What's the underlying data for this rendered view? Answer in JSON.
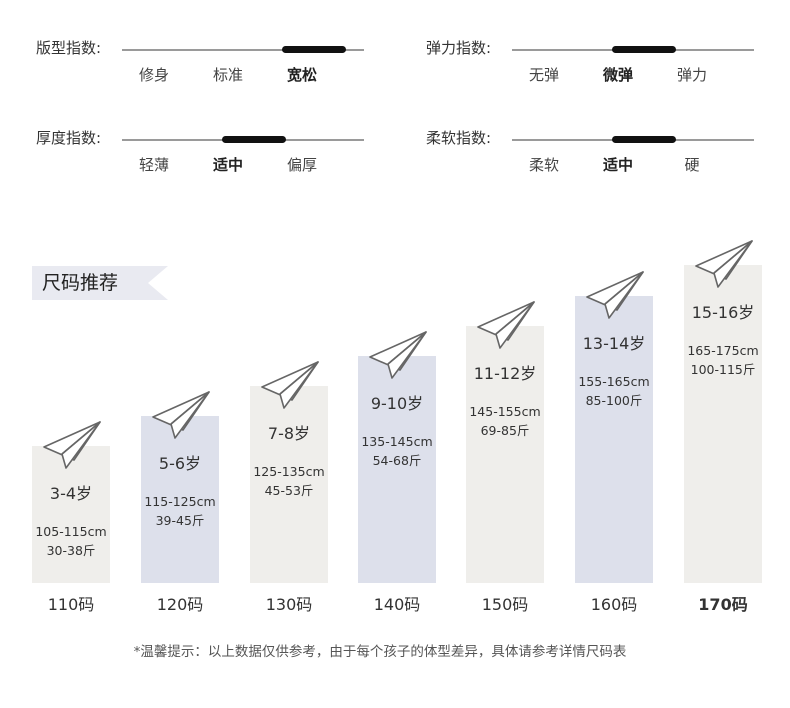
{
  "indices": [
    {
      "label": "版型指数:",
      "options": [
        "修身",
        "标准",
        "宽松"
      ],
      "active": 2
    },
    {
      "label": "弹力指数:",
      "options": [
        "无弹",
        "微弹",
        "弹力"
      ],
      "active": 1
    },
    {
      "label": "厚度指数:",
      "options": [
        "轻薄",
        "适中",
        "偏厚"
      ],
      "active": 1
    },
    {
      "label": "柔软指数:",
      "options": [
        "柔软",
        "适中",
        "硬"
      ],
      "active": 1
    }
  ],
  "banner_title": "尺码推荐",
  "sizes": [
    {
      "age": "3-4岁",
      "height": "105-115cm",
      "weight": "30-38斤",
      "size": "110码",
      "color": "#efeeeb"
    },
    {
      "age": "5-6岁",
      "height": "115-125cm",
      "weight": "39-45斤",
      "size": "120码",
      "color": "#dde0eb"
    },
    {
      "age": "7-8岁",
      "height": "125-135cm",
      "weight": "45-53斤",
      "size": "130码",
      "color": "#efeeeb"
    },
    {
      "age": "9-10岁",
      "height": "135-145cm",
      "weight": "54-68斤",
      "size": "140码",
      "color": "#dde0eb"
    },
    {
      "age": "11-12岁",
      "height": "145-155cm",
      "weight": "69-85斤",
      "size": "150码",
      "color": "#efeeeb"
    },
    {
      "age": "13-14岁",
      "height": "155-165cm",
      "weight": "85-100斤",
      "size": "160码",
      "color": "#dde0eb"
    },
    {
      "age": "15-16岁",
      "height": "165-175cm",
      "weight": "100-115斤",
      "size": "170码",
      "color": "#efeeeb"
    }
  ],
  "note": "*温馨提示：以上数据仅供参考，由于每个孩子的体型差异，具体请参考详情尺码表"
}
